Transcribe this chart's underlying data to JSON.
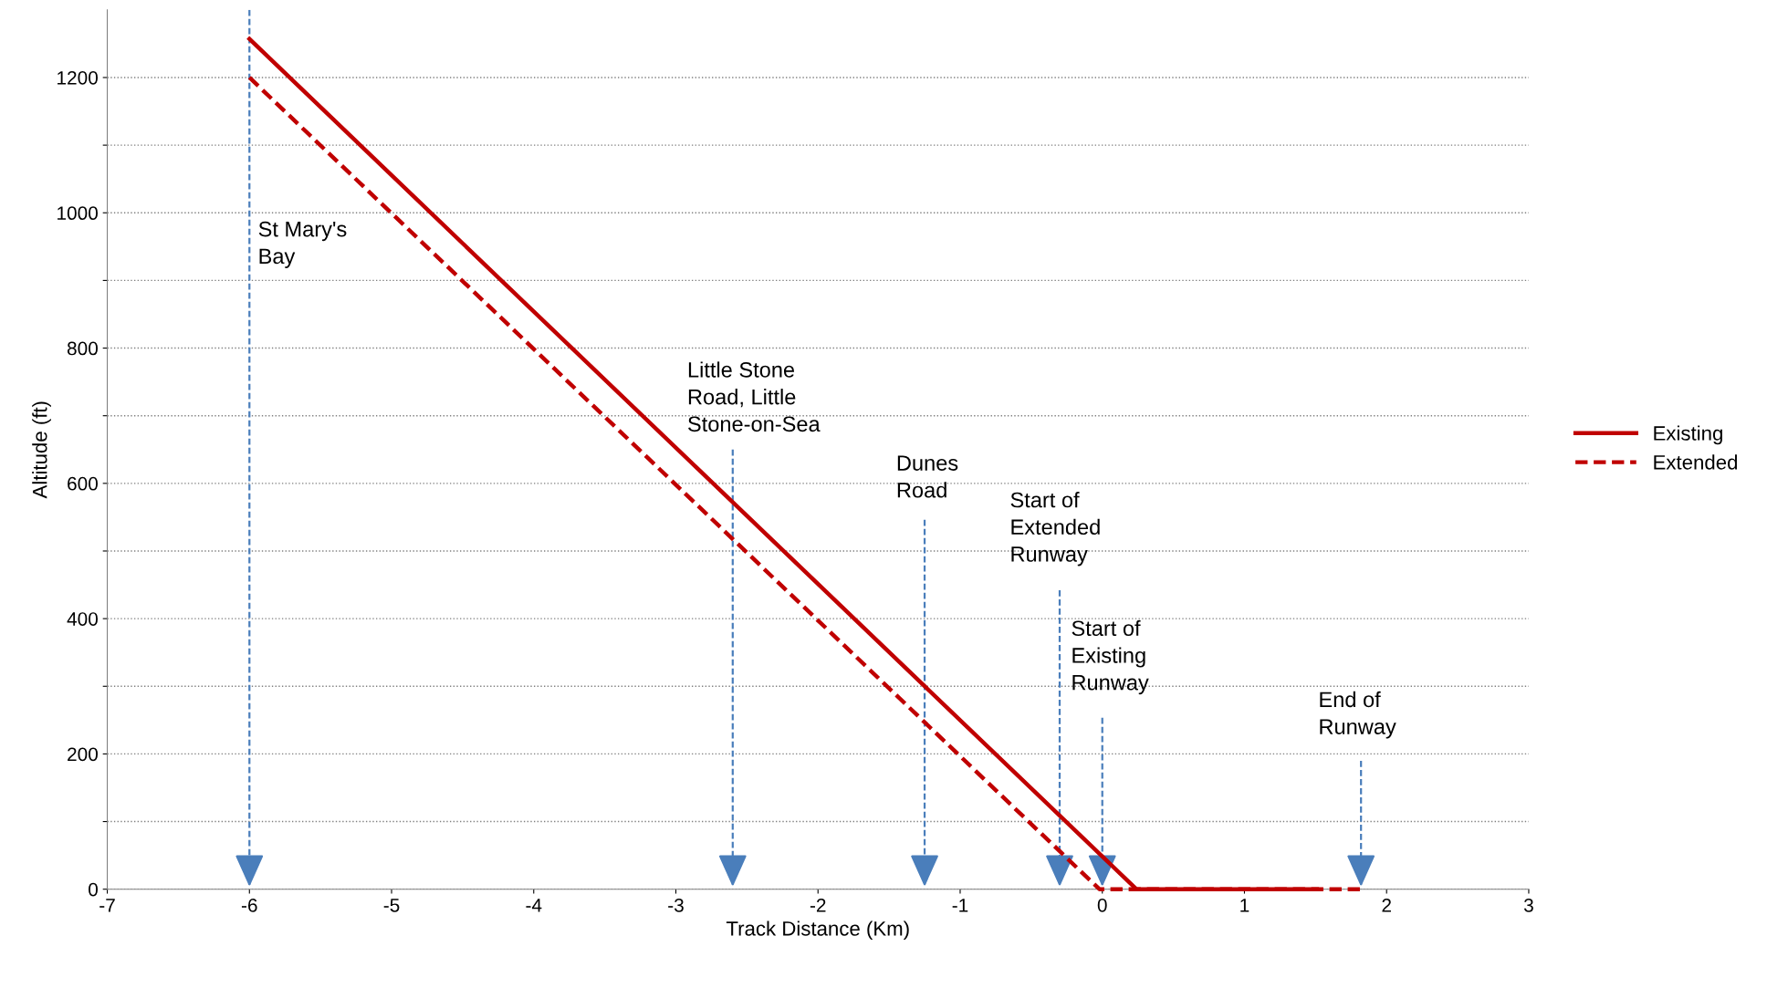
{
  "chart_data": {
    "type": "line",
    "xlabel": "Track Distance (Km)",
    "ylabel": "Altitude (ft)",
    "series": [
      {
        "name": "Existing",
        "color": "#c00000",
        "line_style": "solid",
        "x": [
          -6.0,
          0.24,
          1.51
        ],
        "values": [
          1257,
          0,
          0
        ]
      },
      {
        "name": "Extended",
        "color": "#c00000",
        "line_style": "dashed",
        "x": [
          -6.0,
          -0.02,
          1.82
        ],
        "values": [
          1200,
          0,
          0
        ]
      }
    ],
    "xlim": [
      -7,
      3
    ],
    "xticks": [
      -7,
      -6,
      -5,
      -4,
      -3,
      -2,
      -1,
      0,
      1,
      2,
      3
    ],
    "ylim": [
      0,
      1300
    ],
    "yticks": [
      0,
      {
        "value": 100,
        "label": null
      },
      200,
      {
        "value": 300,
        "label": null
      },
      400,
      {
        "value": 500,
        "label": null
      },
      600,
      {
        "value": 700,
        "label": null
      },
      800,
      {
        "value": 900,
        "label": null
      },
      1000,
      {
        "value": 1100,
        "label": null
      },
      1200
    ],
    "grid": "y",
    "legend": "right",
    "marker": "none",
    "ref_lines": [
      {
        "axis": "x",
        "value": -6.0,
        "label": "St Mary's\nBay",
        "color": "#4a7ebb",
        "line_style": "dashed"
      },
      {
        "axis": "x",
        "value": -2.6,
        "label": "Little Stone\nRoad, Little\nStone-on-Sea",
        "color": "#4a7ebb",
        "line_style": "dashed"
      },
      {
        "axis": "x",
        "value": -1.25,
        "label": "Dunes\nRoad",
        "color": "#4a7ebb",
        "line_style": "dashed"
      },
      {
        "axis": "x",
        "value": -0.3,
        "label": "Start of\nExtended\nRunway",
        "color": "#4a7ebb",
        "line_style": "dashed"
      },
      {
        "axis": "x",
        "value": 0.0,
        "label": "Start of\nExisting\nRunway",
        "color": "#4a7ebb",
        "line_style": "dashed"
      },
      {
        "axis": "x",
        "value": 1.82,
        "label": "End of\nRunway",
        "color": "#4a7ebb",
        "line_style": "dashed"
      }
    ]
  }
}
